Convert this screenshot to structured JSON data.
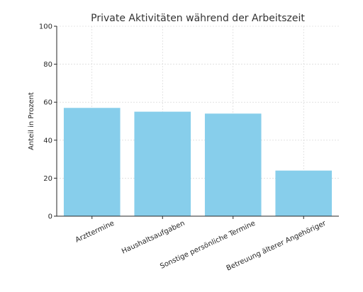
{
  "chart_data": {
    "type": "bar",
    "title": "Private Aktivitäten während der Arbeitszeit",
    "xlabel": "",
    "ylabel": "Anteil in Prozent",
    "categories": [
      "Arzttermine",
      "Haushaltsaufgaben",
      "Sonstige persönliche Termine",
      "Betreuung älterer Angehöriger"
    ],
    "values": [
      57,
      55,
      54,
      24
    ],
    "ylim": [
      0,
      100
    ],
    "yticks": [
      0,
      20,
      40,
      60,
      80,
      100
    ],
    "bar_color": "#87ceeb",
    "grid": true,
    "legend": "none"
  }
}
